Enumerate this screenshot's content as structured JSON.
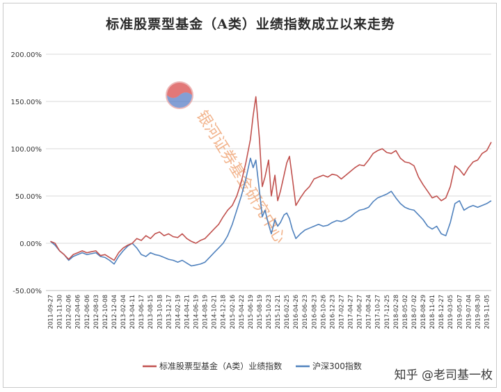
{
  "chart_data": {
    "type": "line",
    "title": "标准股票型基金（A类）业绩指数成立以来走势",
    "xlabel": "",
    "ylabel": "",
    "ylim": [
      -50,
      200
    ],
    "y_ticks": [
      -50,
      0,
      50,
      100,
      150,
      200
    ],
    "y_tick_labels": [
      "-50.00%",
      "0.00%",
      "50.00%",
      "100.00%",
      "150.00%",
      "200.00%"
    ],
    "grid": true,
    "legend_position": "bottom",
    "x_tick_labels": [
      "2011-09-27",
      "2011-11-30",
      "2012-02-06",
      "2012-04-06",
      "2012-06-06",
      "2012-08-03",
      "2012-10-08",
      "2012-12-04",
      "2013-02-04",
      "2013-04-11",
      "2013-06-17",
      "2013-08-15",
      "2013-10-18",
      "2013-12-17",
      "2014-02-19",
      "2014-04-21",
      "2014-06-19",
      "2014-08-19",
      "2014-10-21",
      "2014-12-18",
      "2015-02-16",
      "2015-04-22",
      "2015-06-19",
      "2015-08-19",
      "2015-10-23",
      "2015-12-21",
      "2016-02-25",
      "2016-04-26",
      "2016-06-23",
      "2016-08-23",
      "2016-10-26",
      "2016-12-23",
      "2017-02-27",
      "2017-04-27",
      "2017-06-27",
      "2017-08-24",
      "2017-10-27",
      "2017-12-25",
      "2018-02-28",
      "2018-05-02",
      "2018-07-02",
      "2018-08-29",
      "2018-11-01",
      "2018-12-27",
      "2019-03-05",
      "2019-05-07",
      "2019-07-04",
      "2019-08-30",
      "2019-11-05"
    ],
    "series": [
      {
        "name": "标准股票型基金（A类）业绩指数",
        "color": "#c0504d",
        "points": [
          [
            0,
            2
          ],
          [
            0.5,
            0
          ],
          [
            1,
            -8
          ],
          [
            1.5,
            -12
          ],
          [
            2,
            -17
          ],
          [
            2.5,
            -12
          ],
          [
            3,
            -10
          ],
          [
            3.5,
            -8
          ],
          [
            4,
            -10
          ],
          [
            4.5,
            -9
          ],
          [
            5,
            -8
          ],
          [
            5.5,
            -13
          ],
          [
            6,
            -12
          ],
          [
            6.5,
            -15
          ],
          [
            7,
            -18
          ],
          [
            7.5,
            -10
          ],
          [
            8,
            -5
          ],
          [
            8.5,
            -2
          ],
          [
            9,
            0
          ],
          [
            9.5,
            5
          ],
          [
            10,
            3
          ],
          [
            10.5,
            8
          ],
          [
            11,
            5
          ],
          [
            11.5,
            10
          ],
          [
            12,
            12
          ],
          [
            12.5,
            8
          ],
          [
            13,
            10
          ],
          [
            13.5,
            7
          ],
          [
            14,
            6
          ],
          [
            14.5,
            10
          ],
          [
            15,
            5
          ],
          [
            15.5,
            2
          ],
          [
            16,
            0
          ],
          [
            16.5,
            3
          ],
          [
            17,
            5
          ],
          [
            17.5,
            10
          ],
          [
            18,
            15
          ],
          [
            18.5,
            20
          ],
          [
            19,
            28
          ],
          [
            19.5,
            35
          ],
          [
            20,
            40
          ],
          [
            20.5,
            50
          ],
          [
            21,
            65
          ],
          [
            21.5,
            85
          ],
          [
            22,
            110
          ],
          [
            22.3,
            135
          ],
          [
            22.6,
            155
          ],
          [
            23,
            110
          ],
          [
            23.3,
            60
          ],
          [
            23.6,
            70
          ],
          [
            24,
            88
          ],
          [
            24.3,
            50
          ],
          [
            24.7,
            72
          ],
          [
            25,
            45
          ],
          [
            25.3,
            55
          ],
          [
            25.7,
            72
          ],
          [
            26,
            85
          ],
          [
            26.3,
            92
          ],
          [
            26.6,
            70
          ],
          [
            27,
            40
          ],
          [
            27.5,
            48
          ],
          [
            28,
            55
          ],
          [
            28.5,
            60
          ],
          [
            29,
            68
          ],
          [
            29.5,
            70
          ],
          [
            30,
            72
          ],
          [
            30.5,
            70
          ],
          [
            31,
            73
          ],
          [
            31.5,
            72
          ],
          [
            32,
            68
          ],
          [
            32.5,
            72
          ],
          [
            33,
            76
          ],
          [
            33.5,
            80
          ],
          [
            34,
            83
          ],
          [
            34.5,
            82
          ],
          [
            35,
            88
          ],
          [
            35.5,
            95
          ],
          [
            36,
            98
          ],
          [
            36.5,
            100
          ],
          [
            37,
            96
          ],
          [
            37.5,
            95
          ],
          [
            38,
            98
          ],
          [
            38.5,
            90
          ],
          [
            39,
            86
          ],
          [
            39.5,
            85
          ],
          [
            40,
            82
          ],
          [
            40.5,
            70
          ],
          [
            41,
            62
          ],
          [
            41.5,
            55
          ],
          [
            42,
            48
          ],
          [
            42.5,
            50
          ],
          [
            43,
            45
          ],
          [
            43.5,
            48
          ],
          [
            44,
            60
          ],
          [
            44.5,
            82
          ],
          [
            45,
            78
          ],
          [
            45.5,
            72
          ],
          [
            46,
            80
          ],
          [
            46.5,
            86
          ],
          [
            47,
            88
          ],
          [
            47.5,
            95
          ],
          [
            48,
            98
          ],
          [
            48.5,
            107
          ]
        ]
      },
      {
        "name": "沪深300指数",
        "color": "#4f81bd",
        "points": [
          [
            0,
            2
          ],
          [
            0.5,
            -2
          ],
          [
            1,
            -8
          ],
          [
            1.5,
            -12
          ],
          [
            2,
            -18
          ],
          [
            2.5,
            -14
          ],
          [
            3,
            -12
          ],
          [
            3.5,
            -10
          ],
          [
            4,
            -12
          ],
          [
            4.5,
            -11
          ],
          [
            5,
            -10
          ],
          [
            5.5,
            -14
          ],
          [
            6,
            -15
          ],
          [
            6.5,
            -18
          ],
          [
            7,
            -22
          ],
          [
            7.5,
            -14
          ],
          [
            8,
            -8
          ],
          [
            8.5,
            -3
          ],
          [
            9,
            0
          ],
          [
            9.5,
            -5
          ],
          [
            10,
            -12
          ],
          [
            10.5,
            -14
          ],
          [
            11,
            -10
          ],
          [
            11.5,
            -12
          ],
          [
            12,
            -13
          ],
          [
            12.5,
            -15
          ],
          [
            13,
            -17
          ],
          [
            13.5,
            -18
          ],
          [
            14,
            -20
          ],
          [
            14.5,
            -18
          ],
          [
            15,
            -21
          ],
          [
            15.5,
            -24
          ],
          [
            16,
            -23
          ],
          [
            16.5,
            -22
          ],
          [
            17,
            -20
          ],
          [
            17.5,
            -15
          ],
          [
            18,
            -10
          ],
          [
            18.5,
            -5
          ],
          [
            19,
            0
          ],
          [
            19.5,
            8
          ],
          [
            20,
            20
          ],
          [
            20.5,
            35
          ],
          [
            21,
            50
          ],
          [
            21.5,
            68
          ],
          [
            22,
            90
          ],
          [
            22.3,
            80
          ],
          [
            22.6,
            88
          ],
          [
            23,
            55
          ],
          [
            23.3,
            28
          ],
          [
            23.6,
            35
          ],
          [
            24,
            20
          ],
          [
            24.3,
            10
          ],
          [
            24.7,
            25
          ],
          [
            25,
            18
          ],
          [
            25.3,
            22
          ],
          [
            25.7,
            30
          ],
          [
            26,
            32
          ],
          [
            26.3,
            26
          ],
          [
            26.6,
            15
          ],
          [
            27,
            5
          ],
          [
            27.5,
            10
          ],
          [
            28,
            14
          ],
          [
            28.5,
            16
          ],
          [
            29,
            18
          ],
          [
            29.5,
            20
          ],
          [
            30,
            18
          ],
          [
            30.5,
            19
          ],
          [
            31,
            22
          ],
          [
            31.5,
            24
          ],
          [
            32,
            23
          ],
          [
            32.5,
            25
          ],
          [
            33,
            28
          ],
          [
            33.5,
            32
          ],
          [
            34,
            35
          ],
          [
            34.5,
            36
          ],
          [
            35,
            38
          ],
          [
            35.5,
            44
          ],
          [
            36,
            48
          ],
          [
            36.5,
            50
          ],
          [
            37,
            52
          ],
          [
            37.5,
            55
          ],
          [
            38,
            48
          ],
          [
            38.5,
            42
          ],
          [
            39,
            38
          ],
          [
            39.5,
            36
          ],
          [
            40,
            35
          ],
          [
            40.5,
            30
          ],
          [
            41,
            25
          ],
          [
            41.5,
            18
          ],
          [
            42,
            15
          ],
          [
            42.5,
            18
          ],
          [
            43,
            10
          ],
          [
            43.5,
            8
          ],
          [
            44,
            22
          ],
          [
            44.5,
            42
          ],
          [
            45,
            45
          ],
          [
            45.5,
            35
          ],
          [
            46,
            38
          ],
          [
            46.5,
            40
          ],
          [
            47,
            38
          ],
          [
            47.5,
            40
          ],
          [
            48,
            42
          ],
          [
            48.5,
            45
          ]
        ]
      }
    ]
  },
  "watermark": {
    "logo_text": "银河证券基金研究中心",
    "footer_text": "知乎 @老司基一枚"
  }
}
